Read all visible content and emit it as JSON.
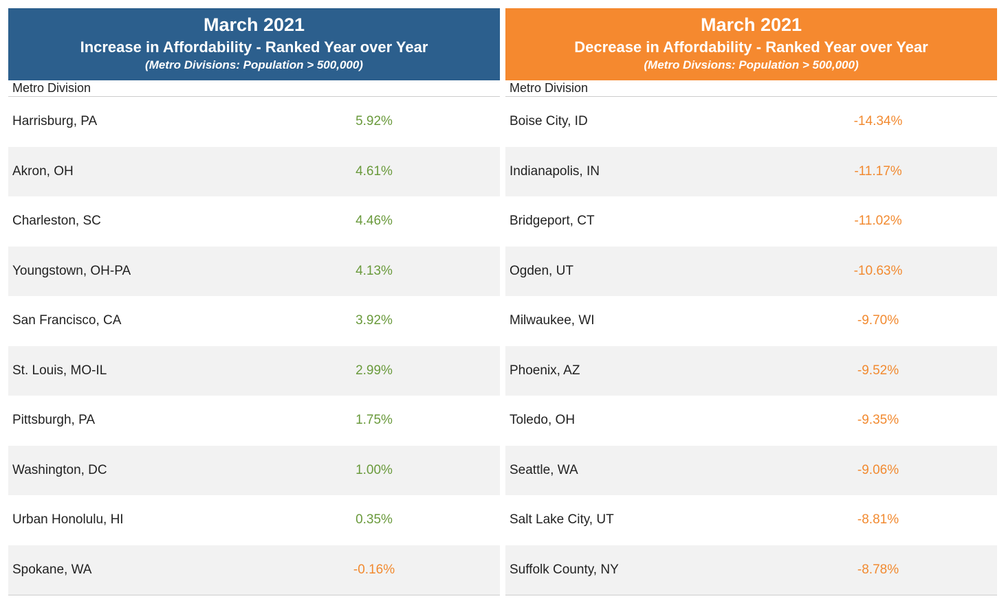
{
  "colors": {
    "left_header_bg": "#2c5f8d",
    "right_header_bg": "#f5892f",
    "positive_value": "#6a9a3c",
    "negative_value": "#f28a30"
  },
  "chart_data": [
    {
      "type": "table",
      "title": "March 2021",
      "subtitle": "Increase in Affordability - Ranked Year over Year",
      "note": "(Metro Divisions: Population > 500,000)",
      "column_header": "Metro Division",
      "rows": [
        {
          "city": "Harrisburg, PA",
          "value": "5.92%"
        },
        {
          "city": "Akron, OH",
          "value": "4.61%"
        },
        {
          "city": "Charleston, SC",
          "value": "4.46%"
        },
        {
          "city": "Youngstown, OH-PA",
          "value": "4.13%"
        },
        {
          "city": "San Francisco, CA",
          "value": "3.92%"
        },
        {
          "city": "St. Louis, MO-IL",
          "value": "2.99%"
        },
        {
          "city": "Pittsburgh, PA",
          "value": "1.75%"
        },
        {
          "city": "Washington, DC",
          "value": "1.00%"
        },
        {
          "city": "Urban Honolulu, HI",
          "value": "0.35%"
        },
        {
          "city": "Spokane, WA",
          "value": "-0.16%"
        }
      ]
    },
    {
      "type": "table",
      "title": "March 2021",
      "subtitle": "Decrease in Affordability - Ranked Year over Year",
      "note": "(Metro Divsions: Population > 500,000)",
      "column_header": "Metro Division",
      "rows": [
        {
          "city": "Boise City, ID",
          "value": "-14.34%"
        },
        {
          "city": "Indianapolis, IN",
          "value": "-11.17%"
        },
        {
          "city": "Bridgeport, CT",
          "value": "-11.02%"
        },
        {
          "city": "Ogden, UT",
          "value": "-10.63%"
        },
        {
          "city": "Milwaukee, WI",
          "value": "-9.70%"
        },
        {
          "city": "Phoenix, AZ",
          "value": "-9.52%"
        },
        {
          "city": "Toledo, OH",
          "value": "-9.35%"
        },
        {
          "city": "Seattle, WA",
          "value": "-9.06%"
        },
        {
          "city": "Salt Lake City, UT",
          "value": "-8.81%"
        },
        {
          "city": "Suffolk County, NY",
          "value": "-8.78%"
        }
      ]
    }
  ]
}
